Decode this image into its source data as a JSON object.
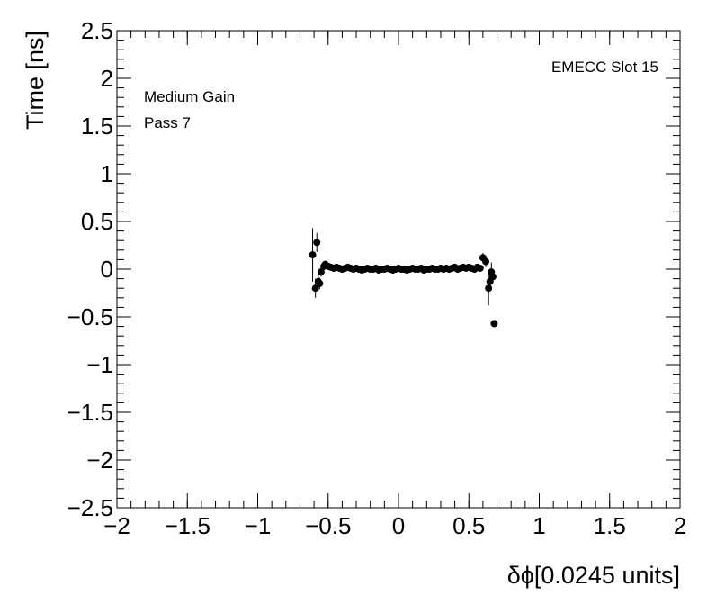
{
  "chart_data": {
    "type": "scatter",
    "x_label": "δϕ[0.0245 units]",
    "y_label": "Time [ns]",
    "annotations": [
      "EMECC Slot 15",
      "Medium Gain",
      "Pass 7"
    ],
    "color": "#000000",
    "xlim": [
      -2,
      2
    ],
    "ylim": [
      -2.5,
      2.5
    ],
    "xticks": [
      {
        "value": -2,
        "label": "−2"
      },
      {
        "value": -1.5,
        "label": "−1.5"
      },
      {
        "value": -1,
        "label": "−1"
      },
      {
        "value": -0.5,
        "label": "−0.5"
      },
      0,
      0.5,
      1,
      1.5,
      2
    ],
    "yticks": [
      {
        "value": -2.5,
        "label": "−2.5"
      },
      {
        "value": -2,
        "label": "−2"
      },
      {
        "value": -1.5,
        "label": "−1.5"
      },
      {
        "value": -1,
        "label": "−1"
      },
      {
        "value": -0.5,
        "label": "−0.5"
      },
      0,
      0.5,
      1,
      1.5,
      2,
      2.5
    ],
    "x": [
      -0.61,
      -0.59,
      -0.58,
      -0.57,
      -0.56,
      -0.55,
      -0.53,
      -0.52,
      -0.5,
      -0.48,
      -0.46,
      -0.44,
      -0.42,
      -0.4,
      -0.38,
      -0.36,
      -0.34,
      -0.32,
      -0.3,
      -0.28,
      -0.26,
      -0.24,
      -0.22,
      -0.2,
      -0.18,
      -0.16,
      -0.14,
      -0.12,
      -0.1,
      -0.08,
      -0.06,
      -0.04,
      -0.02,
      0.0,
      0.02,
      0.04,
      0.06,
      0.08,
      0.1,
      0.12,
      0.14,
      0.16,
      0.18,
      0.2,
      0.22,
      0.24,
      0.26,
      0.28,
      0.3,
      0.32,
      0.34,
      0.36,
      0.38,
      0.4,
      0.42,
      0.44,
      0.46,
      0.48,
      0.5,
      0.52,
      0.54,
      0.56,
      0.58,
      0.6,
      0.62,
      0.64,
      0.65,
      0.66,
      0.67,
      0.68
    ],
    "values": [
      0.15,
      -0.2,
      0.28,
      -0.13,
      -0.15,
      -0.03,
      0.03,
      0.05,
      0.03,
      0.02,
      0.01,
      0.02,
      0.01,
      0.0,
      0.01,
      0.02,
      0.01,
      0.0,
      0.01,
      0.0,
      -0.01,
      0.0,
      0.01,
      0.0,
      0.0,
      0.01,
      -0.01,
      0.0,
      0.0,
      0.01,
      0.0,
      -0.01,
      0.0,
      0.01,
      0.0,
      0.0,
      -0.01,
      0.0,
      0.01,
      0.0,
      0.0,
      0.01,
      -0.01,
      0.0,
      0.0,
      0.01,
      0.0,
      0.0,
      0.01,
      0.0,
      0.01,
      0.0,
      0.01,
      0.02,
      0.0,
      0.01,
      0.02,
      0.01,
      0.02,
      0.01,
      0.0,
      0.02,
      0.01,
      0.12,
      0.08,
      -0.2,
      -0.13,
      -0.03,
      -0.08,
      -0.57
    ],
    "errors": [
      0.28,
      0.1,
      0.1,
      0.1,
      0.06,
      0.05,
      0.04,
      0.04,
      0.02,
      0.02,
      0.02,
      0.02,
      0.02,
      0.02,
      0.02,
      0.02,
      0.02,
      0.02,
      0.02,
      0.02,
      0.02,
      0.02,
      0.02,
      0.02,
      0.02,
      0.02,
      0.02,
      0.02,
      0.02,
      0.02,
      0.02,
      0.02,
      0.02,
      0.02,
      0.02,
      0.02,
      0.02,
      0.02,
      0.02,
      0.02,
      0.02,
      0.02,
      0.02,
      0.02,
      0.02,
      0.02,
      0.02,
      0.02,
      0.02,
      0.02,
      0.02,
      0.02,
      0.02,
      0.02,
      0.02,
      0.02,
      0.02,
      0.02,
      0.02,
      0.02,
      0.02,
      0.02,
      0.02,
      0.05,
      0.06,
      0.18,
      0.1,
      0.1,
      0.05,
      0
    ]
  }
}
